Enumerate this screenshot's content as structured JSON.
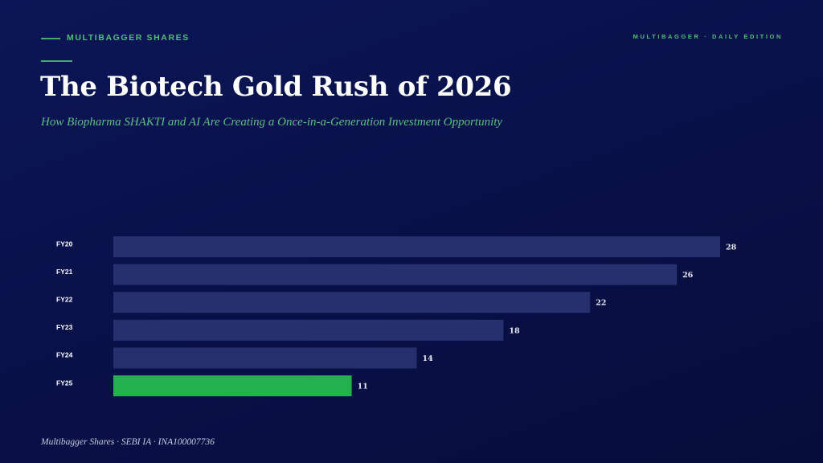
{
  "header": {
    "eyebrow": "MULTIBAGGER SHARES",
    "edition": "MULTIBAGGER · DAILY EDITION",
    "title": "The Biotech Gold Rush of 2026",
    "subtitle": "How Biopharma SHAKTI and AI Are Creating a Once-in-a-Generation Investment Opportunity"
  },
  "chart_data": {
    "type": "bar",
    "orientation": "horizontal",
    "categories": [
      "FY20",
      "FY21",
      "FY22",
      "FY23",
      "FY24",
      "FY25"
    ],
    "values": [
      28,
      26,
      22,
      18,
      14,
      11
    ],
    "colors": [
      "#26306e",
      "#26306e",
      "#26306e",
      "#26306e",
      "#26306e",
      "#22b14c"
    ]
  },
  "footer": "Multibagger Shares · SEBI IA · INA100007736"
}
